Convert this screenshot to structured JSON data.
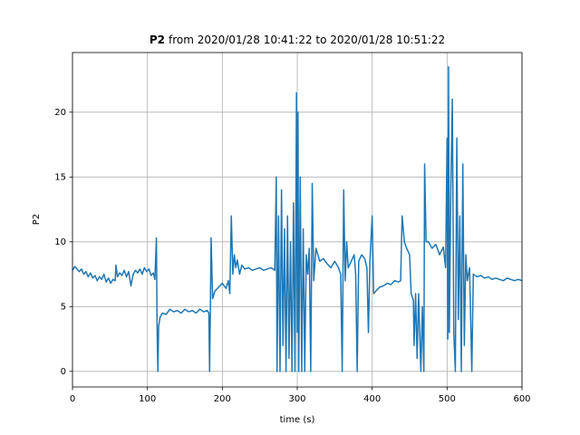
{
  "chart_data": {
    "type": "line",
    "title": {
      "bold": "P2",
      "rest": "from 2020/01/28 10:41:22 to 2020/01/28 10:51:22"
    },
    "xlabel": "time (s)",
    "ylabel": "P2",
    "color": "#1f77b4",
    "grid": true,
    "xlim": [
      0,
      600
    ],
    "ylim": [
      -1.2,
      24.6
    ],
    "xticks": [
      0,
      100,
      200,
      300,
      400,
      500,
      600
    ],
    "yticks": [
      0,
      5,
      10,
      15,
      20
    ],
    "x": [
      0,
      3,
      6,
      9,
      12,
      15,
      18,
      21,
      24,
      27,
      30,
      33,
      36,
      39,
      42,
      45,
      48,
      51,
      54,
      57,
      58,
      60,
      63,
      66,
      69,
      72,
      75,
      78,
      81,
      84,
      87,
      90,
      93,
      96,
      99,
      102,
      105,
      108,
      110,
      112,
      113,
      114,
      115,
      117,
      120,
      125,
      130,
      135,
      140,
      145,
      150,
      155,
      160,
      165,
      170,
      175,
      180,
      182,
      183,
      184,
      185,
      187,
      190,
      195,
      200,
      205,
      208,
      210,
      212,
      214,
      216,
      218,
      220,
      223,
      226,
      230,
      235,
      240,
      245,
      250,
      255,
      260,
      265,
      270,
      272,
      273,
      275,
      277,
      279,
      281,
      283,
      285,
      287,
      289,
      291,
      293,
      295,
      297,
      299,
      300,
      301,
      302,
      304,
      306,
      308,
      310,
      312,
      314,
      316,
      318,
      320,
      322,
      325,
      330,
      335,
      340,
      345,
      350,
      355,
      358,
      360,
      362,
      364,
      366,
      368,
      372,
      376,
      378,
      380,
      382,
      386,
      390,
      393,
      395,
      397,
      400,
      402,
      405,
      410,
      415,
      420,
      425,
      430,
      435,
      438,
      440,
      443,
      446,
      450,
      452,
      455,
      456,
      458,
      460,
      462,
      465,
      467,
      469,
      470,
      472,
      475,
      480,
      485,
      490,
      495,
      498,
      500,
      501,
      502,
      503,
      505,
      507,
      509,
      511,
      513,
      515,
      517,
      519,
      521,
      523,
      525,
      527,
      530,
      533,
      535,
      540,
      545,
      550,
      555,
      560,
      565,
      570,
      575,
      580,
      585,
      590,
      595,
      600
    ],
    "values": [
      7.8,
      8.1,
      7.9,
      7.7,
      7.9,
      7.5,
      7.7,
      7.3,
      7.6,
      7.2,
      7.4,
      7.0,
      7.3,
      7.1,
      7.5,
      6.9,
      7.2,
      6.8,
      7.1,
      7.0,
      8.2,
      7.3,
      7.6,
      7.4,
      7.8,
      7.3,
      7.7,
      6.6,
      7.5,
      7.8,
      7.6,
      7.9,
      7.5,
      8.0,
      7.7,
      7.9,
      7.4,
      7.6,
      7.1,
      10.3,
      3,
      0,
      3.5,
      4.2,
      4.5,
      4.4,
      4.8,
      4.6,
      4.7,
      4.5,
      4.8,
      4.6,
      4.7,
      4.5,
      4.8,
      4.6,
      4.7,
      4.5,
      0,
      4.5,
      10.3,
      5.6,
      6.2,
      6.5,
      6.8,
      6.4,
      7.0,
      6.0,
      12,
      7.5,
      9,
      8,
      8.6,
      7.5,
      8.2,
      7.9,
      8,
      7.8,
      7.9,
      8,
      7.8,
      7.9,
      8,
      7.8,
      15,
      0,
      12,
      0,
      14,
      2,
      11,
      0,
      12,
      1,
      10,
      0,
      13,
      0,
      21.5,
      3,
      20,
      0,
      15,
      0,
      11,
      0,
      9,
      7.5,
      9.5,
      0,
      14.5,
      7,
      9.5,
      8.5,
      8.7,
      8.3,
      8,
      8.5,
      8,
      7.5,
      0,
      14,
      7,
      10,
      8,
      8.5,
      9,
      7.5,
      0,
      8.5,
      9,
      8.7,
      8,
      3,
      8.5,
      12,
      6,
      6.2,
      6.5,
      6.6,
      6.8,
      6.7,
      7,
      6.9,
      7,
      12,
      10,
      9.5,
      9,
      6,
      5.5,
      2,
      6,
      1,
      6,
      0,
      5,
      0,
      16,
      10,
      10,
      9.5,
      9.8,
      9,
      9.6,
      8,
      18,
      2.5,
      23.5,
      3,
      14,
      21,
      3,
      0,
      18,
      4,
      12,
      0,
      16,
      2,
      9,
      7,
      8,
      0,
      7.5,
      7.3,
      7.4,
      7.2,
      7.3,
      7.1,
      7.2,
      7.1,
      7.0,
      7.2,
      7.1,
      7.0,
      7.1,
      7.0
    ]
  }
}
